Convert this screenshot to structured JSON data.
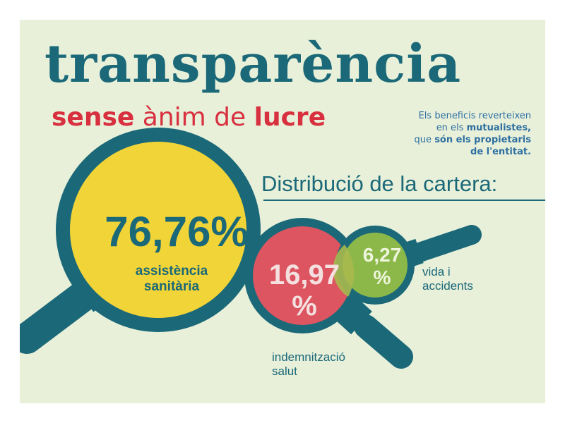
{
  "header": {
    "title": "transparència",
    "subtitle_part1": "sense",
    "subtitle_part2": "ànim de",
    "subtitle_part3": "lucre"
  },
  "note": {
    "line1": "Els beneficis reverteixen",
    "line2_plain": "en els",
    "line2_bold": "mutualistes,",
    "line3_plain": "que",
    "line3_bold": "són els propietaris",
    "line4_bold": "de l'entitat."
  },
  "chart_data": {
    "type": "pie",
    "title": "Distribució de la cartera:",
    "categories": [
      "assistència sanitària",
      "indemnització salut",
      "vida i accidents"
    ],
    "values": [
      76.76,
      16.97,
      6.27
    ],
    "value_labels": [
      "76,76%",
      "16,97 %",
      "6,27 %"
    ],
    "category_labels": [
      [
        "assistència",
        "sanitària"
      ],
      [
        "indemnització",
        "salut"
      ],
      [
        "vida i",
        "accidents"
      ]
    ],
    "colors": [
      "#f1d438",
      "#dc5560",
      "#8cb84a"
    ],
    "ring_color": "#1a6878",
    "representation": "magnifying-glass circles"
  }
}
